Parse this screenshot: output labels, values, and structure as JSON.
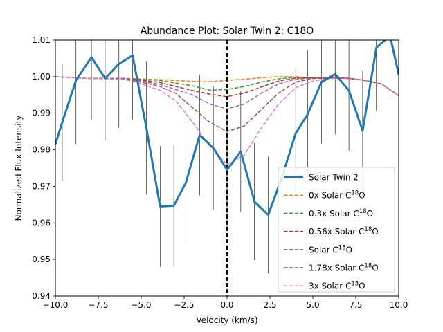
{
  "chart_data": {
    "type": "line",
    "title": "Abundance Plot: Solar Twin 2: C18O",
    "xlabel": "Velocity (km/s)",
    "ylabel": "Normalized Flux Intensity",
    "xlim": [
      -10,
      10
    ],
    "ylim": [
      0.94,
      1.01
    ],
    "grid": false,
    "legend_position": "lower-right",
    "x_ticks": [
      -10,
      -7.5,
      -5,
      -2.5,
      0,
      2.5,
      5,
      7.5,
      10
    ],
    "x_tick_labels": [
      "−10.0",
      "−7.5",
      "−5.0",
      "−2.5",
      "0.0",
      "2.5",
      "5.0",
      "7.5",
      "10.0"
    ],
    "y_ticks": [
      0.94,
      0.95,
      0.96,
      0.97,
      0.98,
      0.99,
      1.0,
      1.01
    ],
    "y_tick_labels": [
      "0.94",
      "0.95",
      "0.96",
      "0.97",
      "0.98",
      "0.99",
      "1.00",
      "1.01"
    ],
    "vline_x": 0,
    "observed": {
      "name": "Solar Twin 2",
      "color": "#1f77b4",
      "x": [
        -10.0,
        -9.6,
        -8.8,
        -7.9,
        -7.1,
        -6.3,
        -5.5,
        -4.7,
        -3.9,
        -3.1,
        -2.4,
        -1.6,
        -0.8,
        0.0,
        0.8,
        1.6,
        2.4,
        3.2,
        4.0,
        4.7,
        5.5,
        6.3,
        7.1,
        7.9,
        8.7,
        9.5,
        10.0
      ],
      "y": [
        0.9815,
        0.9875,
        0.999,
        1.0053,
        0.9995,
        1.0035,
        1.0058,
        0.986,
        0.9645,
        0.9647,
        0.971,
        0.984,
        0.9805,
        0.9745,
        0.9795,
        0.9658,
        0.9622,
        0.9725,
        0.9845,
        0.9898,
        0.9985,
        1.0007,
        0.9962,
        0.9852,
        1.008,
        1.0112,
        1.0005
      ],
      "err": [
        0.0,
        0.016,
        0.0175,
        0.017,
        0.017,
        0.0175,
        0.0175,
        0.0182,
        0.0165,
        0.0165,
        0.0165,
        0.0165,
        0.0168,
        0.0165,
        0.0165,
        0.016,
        0.016,
        0.0178,
        0.0178,
        0.0175,
        0.0168,
        0.0165,
        0.0165,
        0.0165,
        0.0172,
        0.0172,
        0.0
      ]
    },
    "models": [
      {
        "name_prefix": "0x Solar C",
        "name_sup": "18",
        "name_suffix": "O",
        "color": "#ff7f0e",
        "x": [
          -10,
          -8,
          -6,
          -4,
          -2,
          -1,
          0,
          1,
          2,
          3,
          4,
          5,
          6,
          7,
          8,
          9,
          10
        ],
        "y": [
          1.0,
          0.9995,
          0.9995,
          0.9992,
          0.9987,
          0.9986,
          0.999,
          0.9993,
          0.9997,
          1.0,
          1.0,
          0.9997,
          0.9997,
          0.9996,
          0.999,
          0.998,
          0.9948
        ]
      },
      {
        "name_prefix": "0.3x Solar C",
        "name_sup": "18",
        "name_suffix": "O",
        "color": "#2ca02c",
        "x": [
          -10,
          -8,
          -6,
          -4,
          -2,
          -1,
          0,
          1,
          2,
          3,
          4,
          5,
          6,
          7,
          8,
          9,
          10
        ],
        "y": [
          1.0,
          0.9995,
          0.9995,
          0.999,
          0.9975,
          0.9963,
          0.9965,
          0.9973,
          0.9985,
          0.9994,
          0.9998,
          0.9997,
          0.9997,
          0.9996,
          0.999,
          0.998,
          0.9948
        ]
      },
      {
        "name_prefix": "0.56x Solar C",
        "name_sup": "18",
        "name_suffix": "O",
        "color": "#d62728",
        "x": [
          -10,
          -8,
          -6,
          -4,
          -2,
          -1,
          0,
          1,
          2,
          3,
          4,
          5,
          6,
          7,
          8,
          9,
          10
        ],
        "y": [
          1.0,
          0.9995,
          0.9995,
          0.9985,
          0.9962,
          0.9952,
          0.9945,
          0.9955,
          0.9972,
          0.9988,
          0.9996,
          0.9997,
          0.9997,
          0.9996,
          0.999,
          0.998,
          0.9948
        ]
      },
      {
        "name_prefix": "Solar C",
        "name_sup": "18",
        "name_suffix": "O",
        "color": "#9467bd",
        "x": [
          -10,
          -8,
          -6,
          -4,
          -2,
          -1,
          0,
          1,
          2,
          3,
          4,
          5,
          6,
          7,
          8,
          9,
          10
        ],
        "y": [
          1.0,
          0.9995,
          0.9995,
          0.998,
          0.995,
          0.9925,
          0.9912,
          0.9925,
          0.9955,
          0.998,
          0.9993,
          0.9996,
          0.9997,
          0.9996,
          0.999,
          0.998,
          0.9948
        ]
      },
      {
        "name_prefix": "1.78x Solar C",
        "name_sup": "18",
        "name_suffix": "O",
        "color": "#8c564b",
        "x": [
          -10,
          -8,
          -6,
          -4,
          -3,
          -2,
          -1,
          0,
          1,
          2,
          3,
          4,
          5,
          6,
          7,
          8,
          9,
          10
        ],
        "y": [
          1.0,
          0.9995,
          0.9994,
          0.9975,
          0.9955,
          0.9915,
          0.9875,
          0.985,
          0.9865,
          0.991,
          0.9955,
          0.9985,
          0.9995,
          0.9996,
          0.9995,
          0.999,
          0.998,
          0.9948
        ]
      },
      {
        "name_prefix": "3x Solar C",
        "name_sup": "18",
        "name_suffix": "O",
        "color": "#e377c2",
        "x": [
          -10,
          -8,
          -6,
          -5,
          -4,
          -3,
          -2,
          -1,
          0,
          1,
          2,
          3,
          4,
          5,
          6,
          7,
          8,
          9,
          10
        ],
        "y": [
          1.0,
          0.9995,
          0.9993,
          0.998,
          0.9965,
          0.9935,
          0.9875,
          0.981,
          0.976,
          0.9785,
          0.986,
          0.9925,
          0.997,
          0.9988,
          0.9995,
          0.9995,
          0.999,
          0.998,
          0.9948
        ]
      }
    ]
  }
}
